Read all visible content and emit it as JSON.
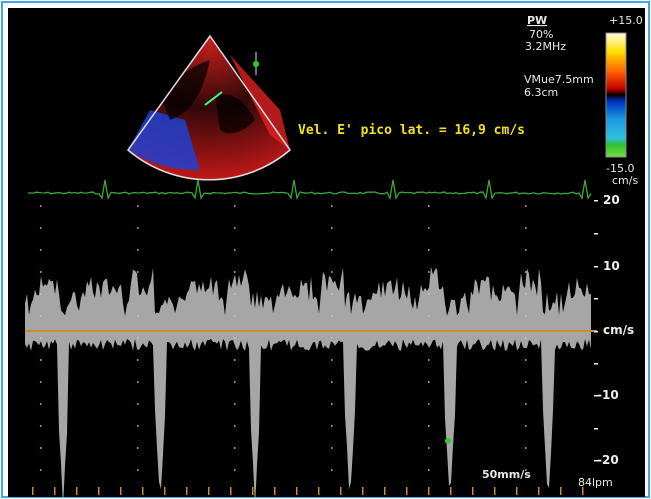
{
  "header": {
    "mode": "PW",
    "gain": "70%",
    "frequency": "3.2MHz",
    "sample_volume": "VMue7.5mm",
    "depth": "6.3cm"
  },
  "color_scale": {
    "max": "+15.0",
    "min": "-15.0",
    "unit": "cm/s"
  },
  "annotation": "Vel. E' pico lat. = 16,9 cm/s",
  "velocity_scale": {
    "labels": [
      "20",
      "10",
      "cm/s",
      "-10",
      "-20"
    ]
  },
  "footer": {
    "sweep_speed": "50mm/s",
    "heart_rate": "84lpm"
  }
}
